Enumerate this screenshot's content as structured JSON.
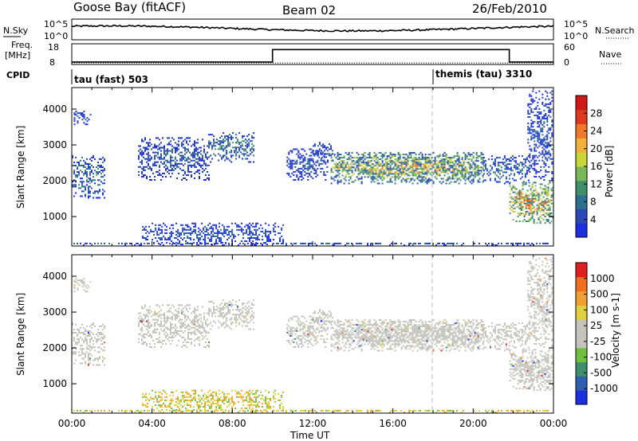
{
  "header": {
    "station": "Goose Bay (fitACF)",
    "beam": "Beam 02",
    "date": "26/Feb/2010"
  },
  "status_panels": {
    "nsky_label": "N.Sky",
    "nsearch_label": "N.Search",
    "freq_label_line1": "Freq.",
    "freq_label_line2": "[MHz]",
    "nave_label": "Nave",
    "cpid_label": "CPID",
    "noise_ticks": [
      "10^5",
      "10^0"
    ],
    "freq_ticks_left": [
      "18",
      "8"
    ],
    "freq_ticks_right": [
      "60",
      "0"
    ],
    "cpid_segments": [
      {
        "name": "tau (fast) 503",
        "start_hour": 0
      },
      {
        "name": "themis (tau) 3310",
        "start_hour": 18.0
      }
    ]
  },
  "chart_data": [
    {
      "type": "heatmap",
      "title": "",
      "quantity": "Power",
      "ylabel": "Slant Range [km]",
      "xlabel": "",
      "xlim_hours": [
        0,
        24
      ],
      "ylim": [
        180,
        4600
      ],
      "yticks": [
        1000,
        2000,
        3000,
        4000
      ],
      "colorbar": {
        "label": "Power [dB]",
        "ticks": [
          "4",
          "8",
          "12",
          "16",
          "20",
          "24",
          "28"
        ],
        "colors": [
          "#1a2fe0",
          "#2a48b8",
          "#2f6f8f",
          "#3e8f6a",
          "#78b858",
          "#c8d63a",
          "#f0b23a",
          "#f07a2a",
          "#e03a1e",
          "#d01818"
        ]
      },
      "echo_regions": [
        {
          "t0": 0.0,
          "t1": 1.6,
          "r0": 1500,
          "r1": 2700,
          "class": "mid"
        },
        {
          "t0": 0.1,
          "t1": 0.9,
          "r0": 3550,
          "r1": 3950,
          "class": "low"
        },
        {
          "t0": 3.3,
          "t1": 6.8,
          "r0": 2000,
          "r1": 3200,
          "class": "low"
        },
        {
          "t0": 6.8,
          "t1": 9.1,
          "r0": 2500,
          "r1": 3350,
          "class": "mid"
        },
        {
          "t0": 3.5,
          "t1": 10.5,
          "r0": 200,
          "r1": 800,
          "class": "low"
        },
        {
          "t0": 10.7,
          "t1": 12.7,
          "r0": 2000,
          "r1": 2900,
          "class": "low"
        },
        {
          "t0": 12.0,
          "t1": 13.0,
          "r0": 2500,
          "r1": 3100,
          "class": "low"
        },
        {
          "t0": 12.9,
          "t1": 20.5,
          "r0": 1900,
          "r1": 2800,
          "class": "high"
        },
        {
          "t0": 20.5,
          "t1": 22.8,
          "r0": 1900,
          "r1": 2700,
          "class": "mid"
        },
        {
          "t0": 21.8,
          "t1": 24.0,
          "r0": 800,
          "r1": 1950,
          "class": "strong"
        },
        {
          "t0": 22.7,
          "t1": 24.0,
          "r0": 2000,
          "r1": 4500,
          "class": "low"
        },
        {
          "t0": 0.0,
          "t1": 24.0,
          "r0": 180,
          "r1": 260,
          "class": "low"
        }
      ]
    },
    {
      "type": "heatmap",
      "title": "",
      "quantity": "Velocity",
      "ylabel": "Slant Range [km]",
      "xlabel": "Time UT",
      "xlim_hours": [
        0,
        24
      ],
      "ylim": [
        180,
        4600
      ],
      "xticks": [
        "00:00",
        "04:00",
        "08:00",
        "12:00",
        "16:00",
        "20:00",
        "00:00"
      ],
      "yticks": [
        1000,
        2000,
        3000,
        4000
      ],
      "ground_scatter_color": "#c4c4bc",
      "colorbar": {
        "label": "Velocity [m s-1]",
        "ticks": [
          "1000",
          "500",
          "100",
          "25",
          "-25",
          "-100",
          "-500",
          "-1000"
        ],
        "colors": [
          "#1a2fe0",
          "#2f5fb0",
          "#3f8f6f",
          "#70c040",
          "#c4c4bc",
          "#c4c4bc",
          "#e0d040",
          "#f0a030",
          "#f07020",
          "#e02020"
        ]
      }
    }
  ],
  "time_series": {
    "noise_level": 0.55,
    "freq_hours": [
      0,
      10.0,
      10.0,
      21.8,
      21.8,
      24.0
    ],
    "freq_levels": [
      0.12,
      0.12,
      0.72,
      0.72,
      0.12,
      0.12
    ]
  }
}
